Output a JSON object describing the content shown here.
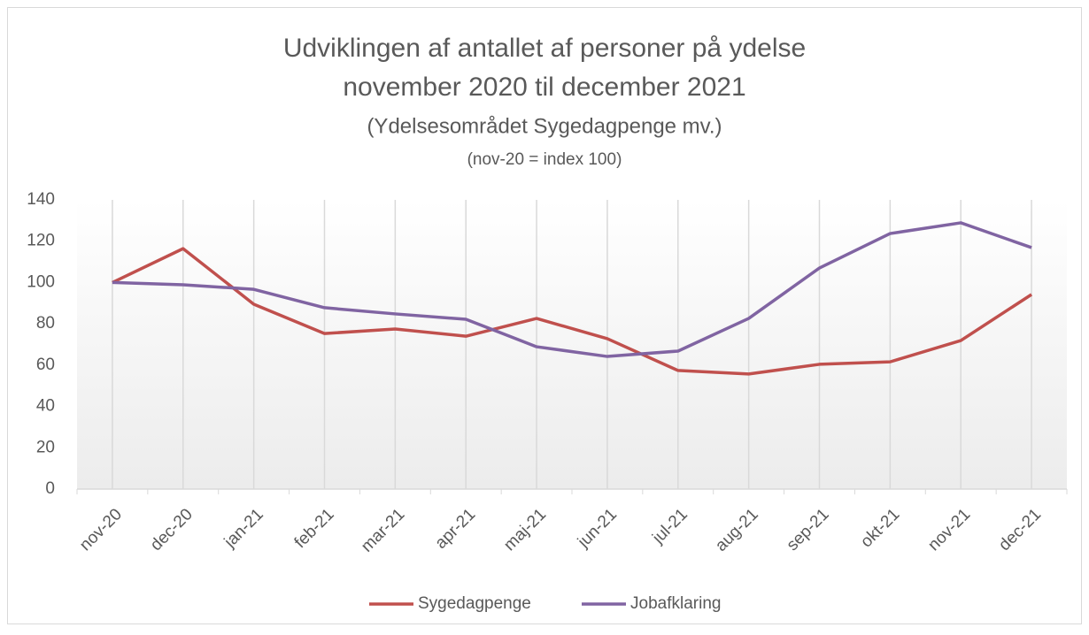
{
  "chart_data": {
    "type": "line",
    "title": [
      "Udviklingen af antallet af personer på ydelse",
      "november 2020 til december 2021"
    ],
    "subtitle": "(Ydelsesområdet Sygedagpenge mv.)",
    "note": "(nov-20 = index 100)",
    "categories": [
      "nov-20",
      "dec-20",
      "jan-21",
      "feb-21",
      "mar-21",
      "apr-21",
      "maj-21",
      "jun-21",
      "jul-21",
      "aug-21",
      "sep-21",
      "okt-21",
      "nov-21",
      "dec-21"
    ],
    "series": [
      {
        "name": "Sygedagpenge",
        "color": "#c0504d",
        "values": [
          100,
          116.4,
          89.5,
          75.3,
          77.5,
          74,
          82.6,
          72.8,
          57.4,
          55.7,
          60.4,
          61.6,
          71.9,
          94.2
        ]
      },
      {
        "name": "Jobafklaring",
        "color": "#8064a2",
        "values": [
          100,
          98.9,
          96.7,
          87.8,
          84.8,
          82.2,
          68.9,
          64.2,
          66.8,
          82.6,
          107,
          123.7,
          128.9,
          116.9
        ]
      }
    ],
    "ylim": [
      0,
      140
    ],
    "yticks": [
      0,
      20,
      40,
      60,
      80,
      100,
      120,
      140
    ],
    "grid": "x",
    "legend": "bottom"
  }
}
